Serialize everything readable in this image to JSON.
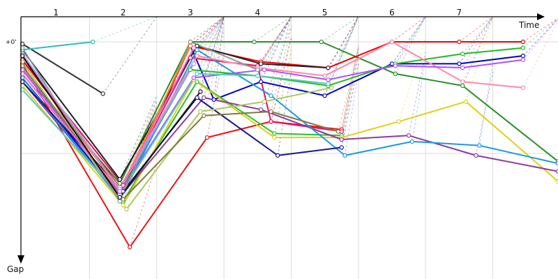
{
  "chart_data": {
    "type": "line",
    "title": "",
    "xlabel": "Time",
    "ylabel": "Gap",
    "x_ticks": [
      "1",
      "2",
      "3",
      "4",
      "5",
      "6",
      "7"
    ],
    "y_tick_labels": [
      {
        "label": "+0'",
        "value": 0
      }
    ],
    "xlim": [
      0,
      7.97
    ],
    "ylim": [
      0,
      105
    ],
    "grid": true,
    "series": [
      {
        "color": "#0000cc",
        "points": [
          [
            0,
            18
          ],
          [
            1.45,
            77
          ],
          [
            2.5,
            2
          ],
          [
            2.85,
            29
          ],
          [
            3.55,
            20
          ],
          [
            4.5,
            27
          ],
          [
            5.5,
            11
          ],
          [
            6.5,
            11
          ],
          [
            7.45,
            7
          ]
        ]
      },
      {
        "color": "#2a8f2a",
        "points": [
          [
            0,
            14
          ],
          [
            1.45,
            71
          ],
          [
            2.5,
            0
          ],
          [
            3.45,
            0
          ],
          [
            4.45,
            0
          ],
          [
            5.55,
            16
          ],
          [
            6.55,
            22
          ],
          [
            7.97,
            60
          ]
        ]
      },
      {
        "color": "#ee1111",
        "points": [
          [
            0,
            11
          ],
          [
            1.6,
            103
          ],
          [
            2.75,
            48
          ],
          [
            3.7,
            40
          ],
          [
            4.75,
            44
          ]
        ]
      },
      {
        "color": "#e01060",
        "points": [
          [
            0,
            9
          ],
          [
            1.5,
            72
          ],
          [
            2.5,
            8
          ],
          [
            3.5,
            12
          ],
          [
            3.7,
            40
          ],
          [
            4.75,
            45
          ]
        ]
      },
      {
        "color": "#ee0000",
        "points": [
          [
            0,
            9
          ],
          [
            1.5,
            75
          ],
          [
            2.5,
            2
          ],
          [
            3.55,
            10
          ],
          [
            4.55,
            13
          ],
          [
            5.5,
            0
          ],
          [
            6.5,
            0
          ],
          [
            7.45,
            0
          ]
        ]
      },
      {
        "color": "#22bb22",
        "points": [
          [
            0,
            16
          ],
          [
            1.45,
            76
          ],
          [
            2.5,
            14
          ],
          [
            3.5,
            17
          ],
          [
            4.55,
            22
          ],
          [
            5.55,
            11
          ],
          [
            6.55,
            6
          ],
          [
            7.45,
            3
          ]
        ]
      },
      {
        "color": "#27c227",
        "points": [
          [
            0,
            13
          ],
          [
            1.5,
            80
          ],
          [
            2.6,
            20
          ],
          [
            3.75,
            46
          ],
          [
            4.75,
            47
          ]
        ]
      },
      {
        "color": "#e0d010",
        "points": [
          [
            0,
            22
          ],
          [
            1.5,
            82
          ],
          [
            2.55,
            19
          ],
          [
            3.75,
            48
          ],
          [
            4.75,
            48
          ],
          [
            5.6,
            40
          ],
          [
            6.6,
            30
          ],
          [
            7.97,
            70
          ]
        ]
      },
      {
        "color": "#8e3b9e",
        "points": [
          [
            0,
            20
          ],
          [
            1.45,
            78
          ],
          [
            2.7,
            28
          ],
          [
            3.55,
            34
          ],
          [
            4.75,
            49
          ],
          [
            5.75,
            47
          ],
          [
            6.75,
            57
          ],
          [
            7.97,
            65
          ]
        ]
      },
      {
        "color": "#1998e6",
        "points": [
          [
            0,
            18
          ],
          [
            1.45,
            79
          ],
          [
            2.6,
            4
          ],
          [
            3.7,
            27
          ],
          [
            4.8,
            57
          ],
          [
            5.8,
            50
          ],
          [
            6.8,
            52
          ],
          [
            7.97,
            61
          ]
        ]
      },
      {
        "color": "#181890",
        "points": [
          [
            0,
            20
          ],
          [
            1.5,
            75
          ],
          [
            2.6,
            28
          ],
          [
            3.8,
            57
          ],
          [
            4.75,
            53
          ]
        ]
      },
      {
        "color": "#ff88aa",
        "points": [
          [
            0,
            13
          ],
          [
            1.45,
            73
          ],
          [
            2.6,
            7
          ],
          [
            3.5,
            13
          ],
          [
            4.5,
            17
          ],
          [
            5.5,
            0
          ],
          [
            6.55,
            20
          ],
          [
            7.45,
            23
          ]
        ]
      },
      {
        "color": "#b14fff",
        "points": [
          [
            0,
            14
          ],
          [
            1.45,
            76
          ],
          [
            2.55,
            18
          ],
          [
            3.6,
            14
          ],
          [
            4.55,
            19
          ],
          [
            5.55,
            12
          ],
          [
            6.55,
            13
          ],
          [
            7.45,
            9
          ]
        ]
      },
      {
        "color": "#222222",
        "points": [
          [
            0,
            4
          ],
          [
            1.45,
            69
          ],
          [
            2.6,
            2
          ],
          [
            3.55,
            11
          ],
          [
            4.55,
            13
          ]
        ]
      },
      {
        "color": "#333333",
        "points": [
          [
            0,
            1
          ],
          [
            1.2,
            26
          ]
        ]
      },
      {
        "color": "#2cbcbc",
        "points": [
          [
            0,
            4
          ],
          [
            1.05,
            0
          ]
        ]
      },
      {
        "color": "#aac860",
        "points": [
          [
            0,
            10
          ],
          [
            1.55,
            84
          ],
          [
            2.65,
            35
          ],
          [
            3.6,
            30
          ],
          [
            4.6,
            23
          ]
        ]
      },
      {
        "color": "#807840",
        "points": [
          [
            0,
            12
          ],
          [
            1.5,
            79
          ],
          [
            2.7,
            37
          ],
          [
            3.7,
            35
          ],
          [
            4.7,
            45
          ]
        ]
      },
      {
        "color": "#55c9c0",
        "points": [
          [
            0,
            24
          ],
          [
            1.45,
            77
          ],
          [
            2.6,
            16
          ],
          [
            3.5,
            17
          ],
          [
            4.55,
            21
          ]
        ]
      },
      {
        "color": "#889999",
        "points": [
          [
            0,
            3
          ],
          [
            1.45,
            80
          ],
          [
            2.5,
            0
          ],
          [
            3.5,
            14
          ]
        ]
      },
      {
        "color": "#ff8800",
        "points": [
          [
            0,
            6
          ],
          [
            1.45,
            75
          ],
          [
            2.5,
            2
          ]
        ]
      },
      {
        "color": "#a0a0ff",
        "points": [
          [
            0,
            6
          ],
          [
            1.45,
            74
          ],
          [
            2.55,
            11
          ]
        ]
      },
      {
        "color": "#ff66dd",
        "points": [
          [
            0,
            16
          ],
          [
            1.45,
            75
          ],
          [
            2.55,
            3
          ]
        ]
      },
      {
        "color": "#111111",
        "points": [
          [
            0,
            7
          ],
          [
            1.45,
            78
          ],
          [
            2.65,
            25
          ]
        ]
      }
    ]
  }
}
